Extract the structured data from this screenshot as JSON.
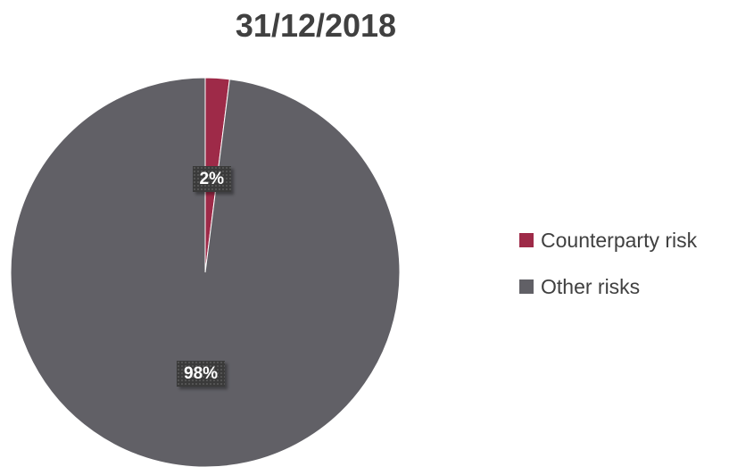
{
  "chart_data": {
    "type": "pie",
    "title": "31/12/2018",
    "series": [
      {
        "values": [
          2,
          98
        ]
      }
    ],
    "categories": [
      "Counterparty risk",
      "Other risks"
    ],
    "data_labels": [
      "2%",
      "98%"
    ],
    "colors": [
      "#9e2a48",
      "#616066"
    ],
    "legend_position": "right",
    "start_angle": "top, clockwise"
  }
}
